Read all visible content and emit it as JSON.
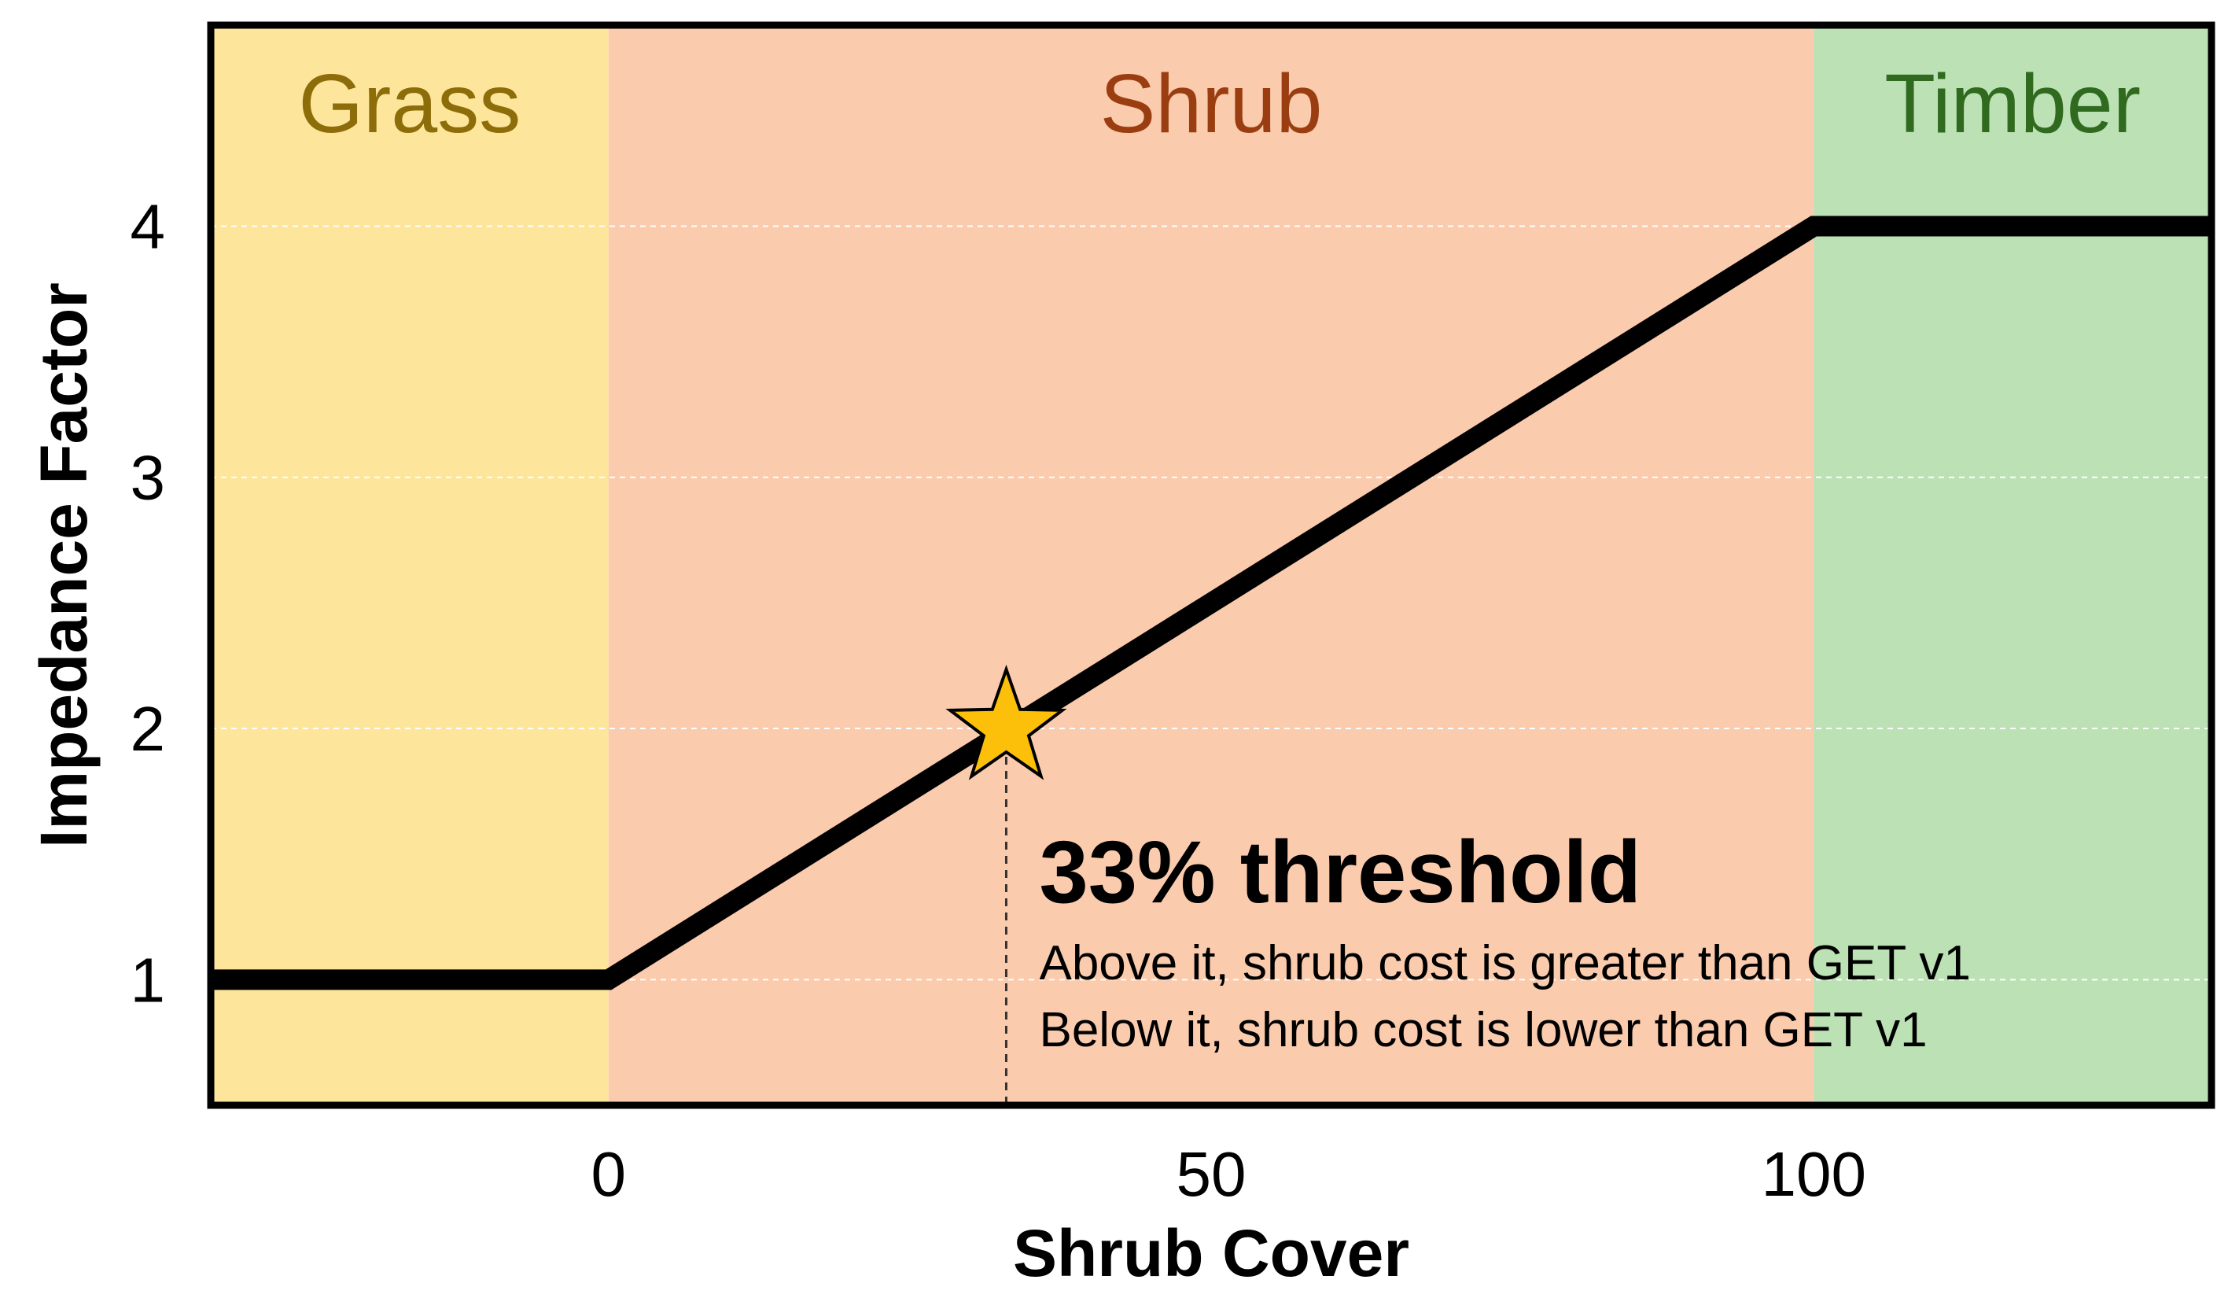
{
  "chart_data": {
    "type": "line",
    "xlabel": "Shrub Cover",
    "ylabel": "Impedance Factor",
    "xlim": [
      -33,
      133
    ],
    "ylim": [
      0.5,
      4.8
    ],
    "x_ticks": [
      0,
      50,
      100
    ],
    "y_ticks": [
      1,
      2,
      3,
      4
    ],
    "grid": "horizontal dashed",
    "regions": [
      {
        "label": "Grass",
        "x_start": -33,
        "x_end": 0,
        "fill": "#fde69b",
        "text_color": "#8c6d09"
      },
      {
        "label": "Shrub",
        "x_start": 0,
        "x_end": 100,
        "fill": "#fbcbad",
        "text_color": "#9a3e12"
      },
      {
        "label": "Timber",
        "x_start": 100,
        "x_end": 133,
        "fill": "#bbe1b4",
        "text_color": "#2f6a1f"
      }
    ],
    "series": [
      {
        "x": [
          -33,
          0,
          100,
          133
        ],
        "y": [
          1,
          1,
          4,
          4
        ],
        "color": "#000000"
      }
    ],
    "marker": {
      "x": 33,
      "y": 2,
      "shape": "star",
      "color": "#fcbf0a"
    },
    "annotation": {
      "title": "33% threshold",
      "lines": [
        "Above it, shrub cost is greater than GET v1",
        "Below it, shrub cost is lower than GET v1"
      ]
    }
  }
}
